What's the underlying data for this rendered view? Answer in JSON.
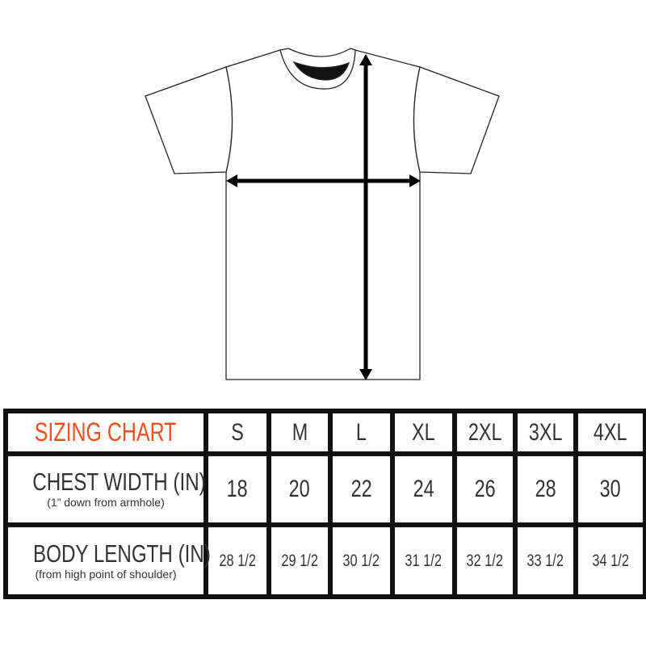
{
  "table": {
    "title": "SIZING CHART",
    "title_color": "#f04e1c",
    "sizes": [
      "S",
      "M",
      "L",
      "XL",
      "2XL",
      "3XL",
      "4XL"
    ],
    "rows": [
      {
        "label": "CHEST WIDTH (IN)",
        "note": "(1” down from armhole)",
        "values": [
          "18",
          "20",
          "22",
          "24",
          "26",
          "28",
          "30"
        ]
      },
      {
        "label": "BODY LENGTH (IN)",
        "note": "(from high point of shoulder)",
        "values": [
          "28 1/2",
          "29 1/2",
          "30 1/2",
          "31 1/2",
          "32 1/2",
          "33 1/2",
          "34 1/2"
        ]
      }
    ]
  },
  "diagram": {
    "icons": [
      "tshirt-outline",
      "chest-width-arrow",
      "body-length-arrow"
    ]
  }
}
